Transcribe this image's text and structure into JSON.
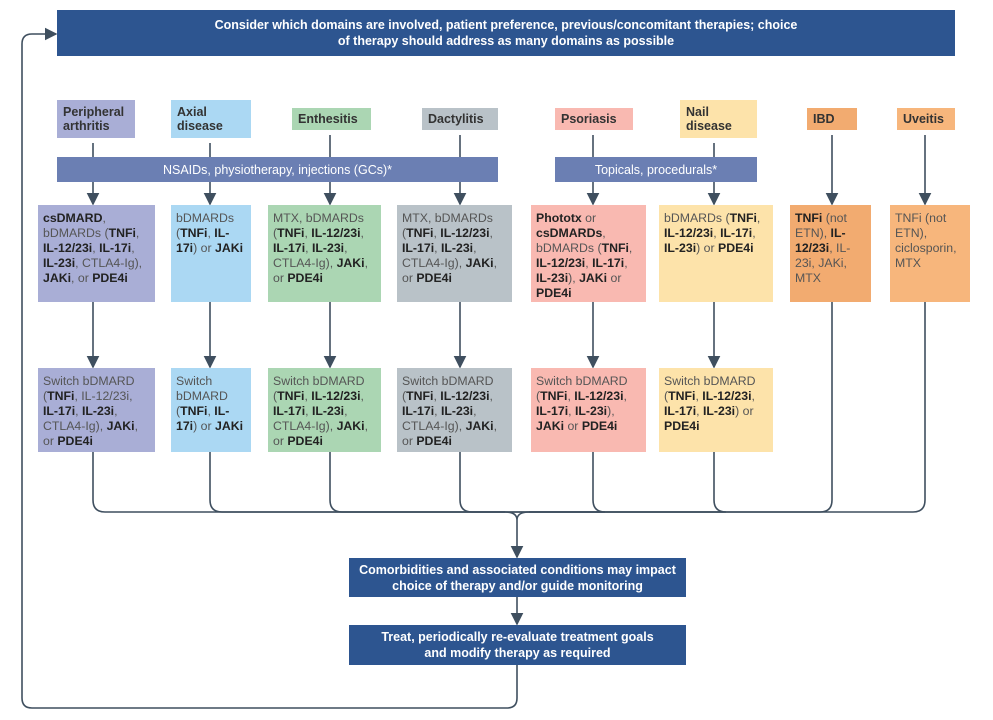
{
  "top_banner": "Consider which domains are involved, patient preference, previous/concomitant therapies; choice of therapy should address as many domains as possible",
  "colors": {
    "dark_blue": "#2d5590",
    "bar": "#6b7fb3",
    "line": "#3f4f5f"
  },
  "domains": [
    {
      "label": "Peripheral arthritis",
      "color": "#a9aed6"
    },
    {
      "label": "Axial disease",
      "color": "#abd8f3"
    },
    {
      "label": "Enthesitis",
      "color": "#abd6b3"
    },
    {
      "label": "Dactylitis",
      "color": "#b9c2c8"
    },
    {
      "label": "Psoriasis",
      "color": "#f9b9b1"
    },
    {
      "label": "Nail disease",
      "color": "#fde3aa"
    },
    {
      "label": "IBD",
      "color": "#f2ab70"
    },
    {
      "label": "Uveitis",
      "color": "#f7b67c"
    }
  ],
  "bars": {
    "nsaids": "NSAIDs, physiotherapy, injections (GCs)*",
    "topicals": "Topicals, procedurals*"
  },
  "first_line": [
    [
      [
        "csDMARD",
        1
      ],
      [
        ", bDMARDs (",
        0
      ],
      [
        "TNFi",
        1
      ],
      [
        ", ",
        0
      ],
      [
        "IL-12/23i",
        1
      ],
      [
        ", ",
        0
      ],
      [
        "IL-17i",
        1
      ],
      [
        ", ",
        0
      ],
      [
        "IL-23i",
        1
      ],
      [
        ", CTLA4-Ig), ",
        0
      ],
      [
        "JAKi",
        1
      ],
      [
        ", or ",
        0
      ],
      [
        "PDE4i",
        1
      ]
    ],
    [
      [
        "bDMARDs (",
        0
      ],
      [
        "TNFi",
        1
      ],
      [
        ", ",
        0
      ],
      [
        "IL-17i",
        1
      ],
      [
        ") or ",
        0
      ],
      [
        "JAKi",
        1
      ]
    ],
    [
      [
        "MTX, bDMARDs (",
        0
      ],
      [
        "TNFi",
        1
      ],
      [
        ", ",
        0
      ],
      [
        "IL-12/23i",
        1
      ],
      [
        ", ",
        0
      ],
      [
        "IL-17i",
        1
      ],
      [
        ", ",
        0
      ],
      [
        "IL-23i",
        1
      ],
      [
        ", CTLA4-Ig), ",
        0
      ],
      [
        "JAKi",
        1
      ],
      [
        ", or ",
        0
      ],
      [
        "PDE4i",
        1
      ]
    ],
    [
      [
        "MTX, bDMARDs (",
        0
      ],
      [
        "TNFi",
        1
      ],
      [
        ", ",
        0
      ],
      [
        "IL-12/23i",
        1
      ],
      [
        ", ",
        0
      ],
      [
        "IL-17i",
        1
      ],
      [
        ", ",
        0
      ],
      [
        "IL-23i",
        1
      ],
      [
        ", CTLA4-Ig), ",
        0
      ],
      [
        "JAKi",
        1
      ],
      [
        ", or ",
        0
      ],
      [
        "PDE4i",
        1
      ]
    ],
    [
      [
        "Phototx",
        1
      ],
      [
        " or ",
        0
      ],
      [
        "csDMARDs",
        1
      ],
      [
        ", bDMARDs (",
        0
      ],
      [
        "TNFi",
        1
      ],
      [
        ", ",
        0
      ],
      [
        "IL-12/23i",
        1
      ],
      [
        ", ",
        0
      ],
      [
        "IL-17i",
        1
      ],
      [
        ", ",
        0
      ],
      [
        "IL-23i",
        1
      ],
      [
        "), ",
        0
      ],
      [
        "JAKi",
        1
      ],
      [
        " or ",
        0
      ],
      [
        "PDE4i",
        1
      ]
    ],
    [
      [
        "bDMARDs (",
        0
      ],
      [
        "TNFi",
        1
      ],
      [
        ", ",
        0
      ],
      [
        "IL-12/23i",
        1
      ],
      [
        ", ",
        0
      ],
      [
        "IL-17i",
        1
      ],
      [
        ", ",
        0
      ],
      [
        "IL-23i",
        1
      ],
      [
        ") or ",
        0
      ],
      [
        "PDE4i",
        1
      ]
    ],
    [
      [
        "TNFi",
        1
      ],
      [
        " (not ETN), ",
        0
      ],
      [
        "IL-12/23i",
        1
      ],
      [
        ", IL-23i, JAKi, MTX",
        0
      ]
    ],
    [
      [
        "TNFi (not ETN), ciclosporin, MTX",
        0
      ]
    ]
  ],
  "second_line": [
    [
      [
        "Switch bDMARD (",
        0
      ],
      [
        "TNFi",
        1
      ],
      [
        ", IL-12/23i, ",
        0
      ],
      [
        "IL-17i",
        1
      ],
      [
        ", ",
        0
      ],
      [
        "IL-23i",
        1
      ],
      [
        ", CTLA4-Ig), ",
        0
      ],
      [
        "JAKi",
        1
      ],
      [
        ", or ",
        0
      ],
      [
        "PDE4i",
        1
      ]
    ],
    [
      [
        "Switch bDMARD (",
        0
      ],
      [
        "TNFi",
        1
      ],
      [
        ", ",
        0
      ],
      [
        "IL-17i",
        1
      ],
      [
        ") or ",
        0
      ],
      [
        "JAKi",
        1
      ]
    ],
    [
      [
        "Switch bDMARD (",
        0
      ],
      [
        "TNFi",
        1
      ],
      [
        ", ",
        0
      ],
      [
        "IL-12/23i",
        1
      ],
      [
        ", ",
        0
      ],
      [
        "IL-17i",
        1
      ],
      [
        ", ",
        0
      ],
      [
        "IL-23i",
        1
      ],
      [
        ", CTLA4-Ig), ",
        0
      ],
      [
        "JAKi",
        1
      ],
      [
        ", or ",
        0
      ],
      [
        "PDE4i",
        1
      ]
    ],
    [
      [
        "Switch bDMARD (",
        0
      ],
      [
        "TNFi",
        1
      ],
      [
        ", ",
        0
      ],
      [
        "IL-12/23i",
        1
      ],
      [
        ", ",
        0
      ],
      [
        "IL-17i",
        1
      ],
      [
        ", ",
        0
      ],
      [
        "IL-23i",
        1
      ],
      [
        ", CTLA4-Ig), ",
        0
      ],
      [
        "JAKi",
        1
      ],
      [
        ", or ",
        0
      ],
      [
        "PDE4i",
        1
      ]
    ],
    [
      [
        "Switch bDMARD (",
        0
      ],
      [
        "TNFi",
        1
      ],
      [
        ", ",
        0
      ],
      [
        "IL-12/23i",
        1
      ],
      [
        ", ",
        0
      ],
      [
        "IL-17i",
        1
      ],
      [
        ", ",
        0
      ],
      [
        "IL-23i",
        1
      ],
      [
        "), ",
        0
      ],
      [
        "JAKi",
        1
      ],
      [
        " or ",
        0
      ],
      [
        "PDE4i",
        1
      ]
    ],
    [
      [
        "Switch bDMARD (",
        0
      ],
      [
        "TNFi",
        1
      ],
      [
        ", ",
        0
      ],
      [
        "IL-12/23i",
        1
      ],
      [
        ", ",
        0
      ],
      [
        "IL-17i",
        1
      ],
      [
        ", ",
        0
      ],
      [
        "IL-23i",
        1
      ],
      [
        ") or ",
        0
      ],
      [
        "PDE4i",
        1
      ]
    ]
  ],
  "comorbidities": "Comorbidities and associated conditions may impact choice of therapy and/or guide monitoring",
  "treat": "Treat, periodically re-evaluate treatment goals and modify therapy as required"
}
